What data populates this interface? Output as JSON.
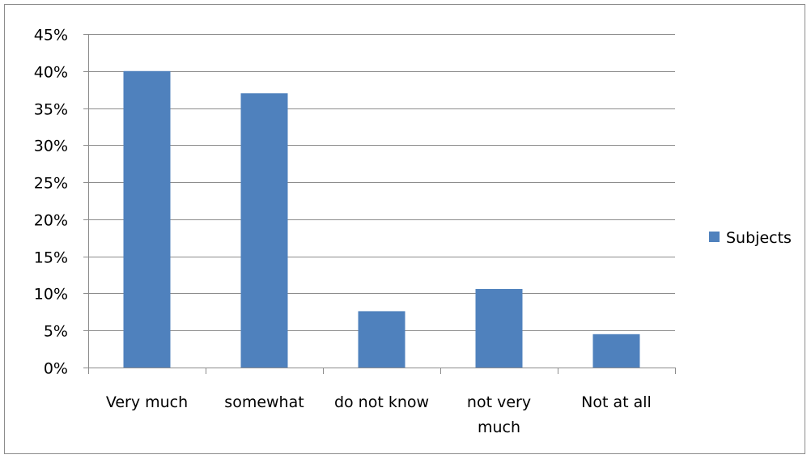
{
  "chart_data": {
    "type": "bar",
    "categories": [
      "Very much",
      "somewhat",
      "do not know",
      "not very much",
      "Not at all"
    ],
    "category_lines": [
      [
        "Very much"
      ],
      [
        "somewhat"
      ],
      [
        "do not know"
      ],
      [
        "not very",
        "much"
      ],
      [
        "Not at all"
      ]
    ],
    "series": [
      {
        "name": "Subjects",
        "values": [
          40,
          37,
          7.6,
          10.6,
          4.5
        ],
        "color": "#4f81bd"
      }
    ],
    "ylim": [
      0,
      45
    ],
    "y_ticks": [
      0,
      5,
      10,
      15,
      20,
      25,
      30,
      35,
      40,
      45
    ],
    "y_tick_labels": [
      "0%",
      "5%",
      "10%",
      "15%",
      "20%",
      "25%",
      "30%",
      "35%",
      "40%",
      "45%"
    ],
    "y_unit": "%",
    "grid": true,
    "legend_position": "right",
    "title": "",
    "xlabel": "",
    "ylabel": ""
  }
}
